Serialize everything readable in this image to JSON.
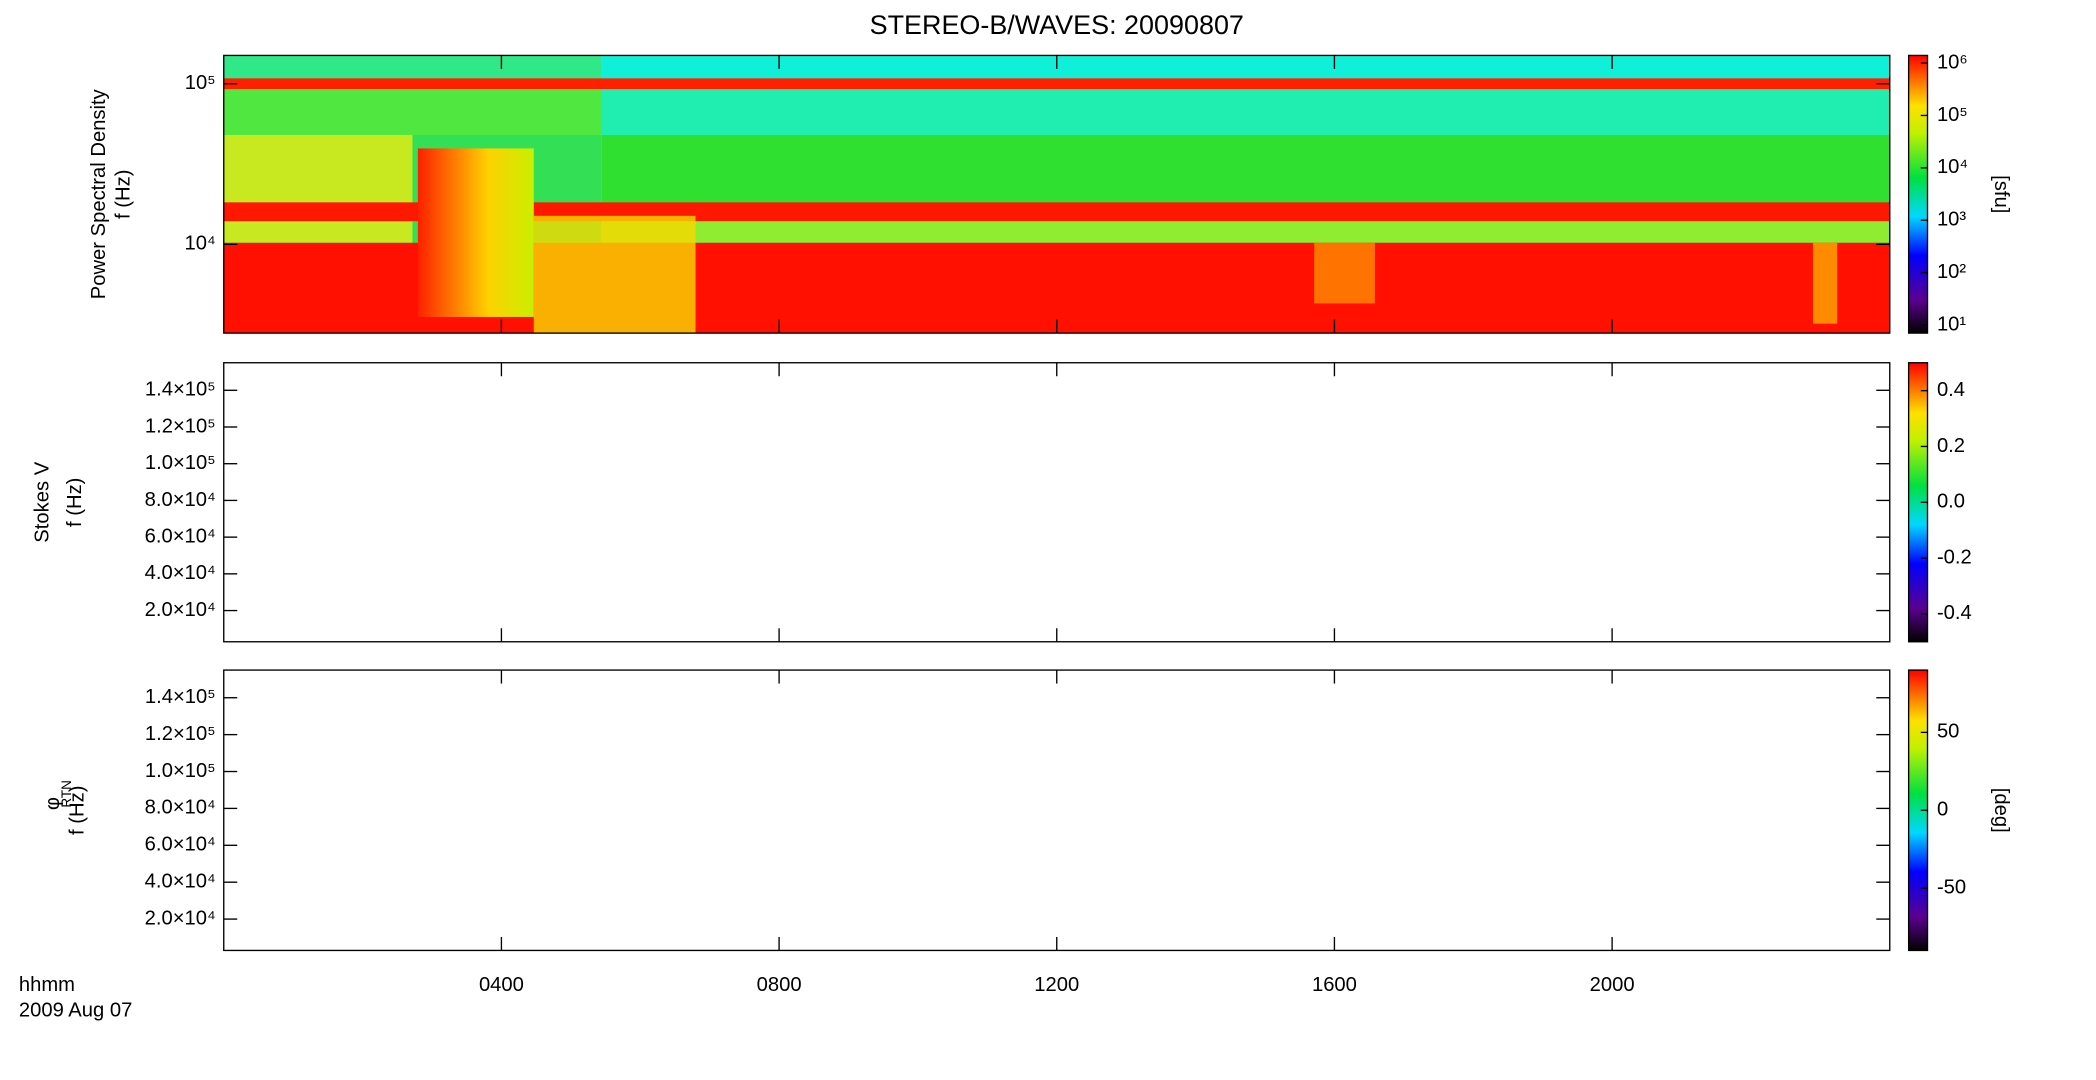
{
  "chart_data": [
    {
      "type": "spectrogram",
      "title": "STEREO-B/WAVES: 20090807",
      "ylabel": [
        "Power Spectral Density",
        "f (Hz)"
      ],
      "yscale": "log",
      "ylim": [
        2800,
        150000
      ],
      "yticks": [
        {
          "value": 100000,
          "label": "10⁵"
        },
        {
          "value": 10000,
          "label": "10⁴"
        }
      ],
      "xlim": [
        0,
        24
      ],
      "colorbar": {
        "scale": "log",
        "lim": [
          7,
          1400000
        ],
        "label": "[sfu]",
        "ticks": [
          {
            "value": 1000000,
            "label": "10⁶"
          },
          {
            "value": 100000,
            "label": "10⁵"
          },
          {
            "value": 10000,
            "label": "10⁴"
          },
          {
            "value": 1000,
            "label": "10³"
          },
          {
            "value": 100,
            "label": "10²"
          },
          {
            "value": 10,
            "label": "10¹"
          }
        ]
      }
    },
    {
      "type": "spectrogram",
      "ylabel": [
        "Stokes V",
        "f (Hz)"
      ],
      "yscale": "linear",
      "ylim": [
        3000,
        155000
      ],
      "yticks": [
        {
          "value": 140000,
          "label": "1.4×10⁵"
        },
        {
          "value": 120000,
          "label": "1.2×10⁵"
        },
        {
          "value": 100000,
          "label": "1.0×10⁵"
        },
        {
          "value": 80000,
          "label": "8.0×10⁴"
        },
        {
          "value": 60000,
          "label": "6.0×10⁴"
        },
        {
          "value": 40000,
          "label": "4.0×10⁴"
        },
        {
          "value": 20000,
          "label": "2.0×10⁴"
        }
      ],
      "xlim": [
        0,
        24
      ],
      "colorbar": {
        "scale": "linear",
        "lim": [
          -0.5,
          0.5
        ],
        "ticks": [
          {
            "value": 0.4,
            "label": "0.4"
          },
          {
            "value": 0.2,
            "label": "0.2"
          },
          {
            "value": 0,
            "label": "0.0"
          },
          {
            "value": -0.2,
            "label": "-0.2"
          },
          {
            "value": -0.4,
            "label": "-0.4"
          }
        ]
      }
    },
    {
      "type": "spectrogram",
      "ylabel": [
        "φ",
        "RTN",
        "f (Hz)"
      ],
      "yscale": "linear",
      "ylim": [
        3000,
        155000
      ],
      "yticks": [
        {
          "value": 140000,
          "label": "1.4×10⁵"
        },
        {
          "value": 120000,
          "label": "1.2×10⁵"
        },
        {
          "value": 100000,
          "label": "1.0×10⁵"
        },
        {
          "value": 80000,
          "label": "8.0×10⁴"
        },
        {
          "value": 60000,
          "label": "6.0×10⁴"
        },
        {
          "value": 40000,
          "label": "4.0×10⁴"
        },
        {
          "value": 20000,
          "label": "2.0×10⁴"
        }
      ],
      "xlim": [
        0,
        24
      ],
      "xticks": [
        {
          "value": 4,
          "label": "0400"
        },
        {
          "value": 8,
          "label": "0800"
        },
        {
          "value": 12,
          "label": "1200"
        },
        {
          "value": 16,
          "label": "1600"
        },
        {
          "value": 20,
          "label": "2000"
        }
      ],
      "xlabel": [
        "hhmm",
        "2009 Aug 07"
      ],
      "colorbar": {
        "scale": "linear",
        "lim": [
          -90,
          90
        ],
        "label": "[deg]",
        "ticks": [
          50,
          0,
          -50
        ]
      }
    }
  ]
}
